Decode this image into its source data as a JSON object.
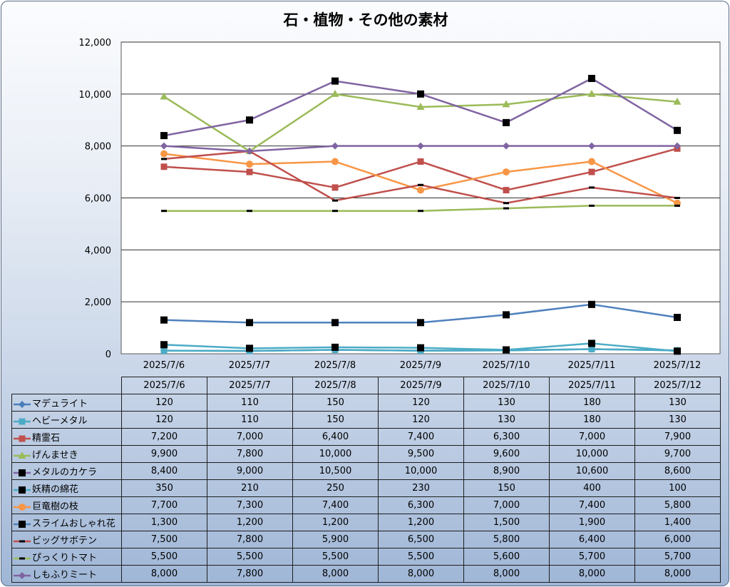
{
  "chart_data": {
    "type": "line",
    "title": "石・植物・その他の素材",
    "categories": [
      "2025/7/6",
      "2025/7/7",
      "2025/7/8",
      "2025/7/9",
      "2025/7/10",
      "2025/7/11",
      "2025/7/12"
    ],
    "y_ticks": [
      "0",
      "2,000",
      "4,000",
      "6,000",
      "8,000",
      "10,000",
      "12,000"
    ],
    "ylim": [
      0,
      12000
    ],
    "grid": true,
    "legend_placement": "data-table",
    "series": [
      {
        "name": "マデュライト",
        "color": "#4a7ebb",
        "marker": "diamond",
        "values": [
          120,
          110,
          150,
          120,
          130,
          180,
          130
        ],
        "display": [
          "120",
          "110",
          "150",
          "120",
          "130",
          "180",
          "130"
        ]
      },
      {
        "name": "ヘビーメタル",
        "color": "#4bacc6",
        "marker": "square",
        "values": [
          120,
          110,
          150,
          120,
          130,
          180,
          130
        ],
        "display": [
          "120",
          "110",
          "150",
          "120",
          "130",
          "180",
          "130"
        ]
      },
      {
        "name": "精霊石",
        "color": "#c0504d",
        "marker": "square",
        "values": [
          7200,
          7000,
          6400,
          7400,
          6300,
          7000,
          7900
        ],
        "display": [
          "7,200",
          "7,000",
          "6,400",
          "7,400",
          "6,300",
          "7,000",
          "7,900"
        ]
      },
      {
        "name": "げんませき",
        "color": "#9bbb59",
        "marker": "triangle",
        "values": [
          9900,
          7800,
          10000,
          9500,
          9600,
          10000,
          9700
        ],
        "display": [
          "9,900",
          "7,800",
          "10,000",
          "9,500",
          "9,600",
          "10,000",
          "9,700"
        ]
      },
      {
        "name": "メタルのカケラ",
        "color": "#8064a2",
        "marker": "black-square",
        "values": [
          8400,
          9000,
          10500,
          10000,
          8900,
          10600,
          8600
        ],
        "display": [
          "8,400",
          "9,000",
          "10,500",
          "10,000",
          "8,900",
          "10,600",
          "8,600"
        ]
      },
      {
        "name": "妖精の綿花",
        "color": "#4bacc6",
        "marker": "black-square",
        "values": [
          350,
          210,
          250,
          230,
          150,
          400,
          100
        ],
        "display": [
          "350",
          "210",
          "250",
          "230",
          "150",
          "400",
          "100"
        ]
      },
      {
        "name": "巨竜樹の枝",
        "color": "#f79646",
        "marker": "circle",
        "values": [
          7700,
          7300,
          7400,
          6300,
          7000,
          7400,
          5800
        ],
        "display": [
          "7,700",
          "7,300",
          "7,400",
          "6,300",
          "7,000",
          "7,400",
          "5,800"
        ]
      },
      {
        "name": "スライムおしゃれ花",
        "color": "#4f81bd",
        "marker": "black-square",
        "values": [
          1300,
          1200,
          1200,
          1200,
          1500,
          1900,
          1400
        ],
        "display": [
          "1,300",
          "1,200",
          "1,200",
          "1,200",
          "1,500",
          "1,900",
          "1,400"
        ]
      },
      {
        "name": "ビッグサボテン",
        "color": "#c0504d",
        "marker": "dash",
        "values": [
          7500,
          7800,
          5900,
          6500,
          5800,
          6400,
          6000
        ],
        "display": [
          "7,500",
          "7,800",
          "5,900",
          "6,500",
          "5,800",
          "6,400",
          "6,000"
        ]
      },
      {
        "name": "ぴっくりトマト",
        "color": "#9bbb59",
        "marker": "dash",
        "values": [
          5500,
          5500,
          5500,
          5500,
          5600,
          5700,
          5700
        ],
        "display": [
          "5,500",
          "5,500",
          "5,500",
          "5,500",
          "5,600",
          "5,700",
          "5,700"
        ]
      },
      {
        "name": "しもふりミート",
        "color": "#8064a2",
        "marker": "diamond",
        "values": [
          8000,
          7800,
          8000,
          8000,
          8000,
          8000,
          8000
        ],
        "display": [
          "8,000",
          "7,800",
          "8,000",
          "8,000",
          "8,000",
          "8,000",
          "8,000"
        ]
      }
    ]
  }
}
